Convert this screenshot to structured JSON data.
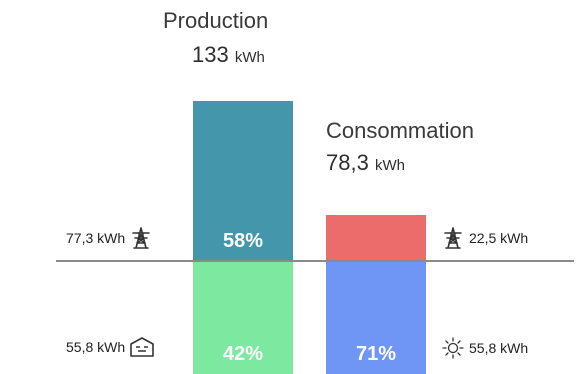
{
  "chart_data": {
    "type": "bar",
    "production": {
      "title": "Production",
      "total_value": "133",
      "unit": "kWh",
      "segments": [
        {
          "name": "grid",
          "percent": 58,
          "label": "58%",
          "value_label": "77,3 kWh",
          "icon": "power-pylon-icon",
          "color": "#4497ab"
        },
        {
          "name": "home",
          "percent": 42,
          "label": "42%",
          "value_label": "55,8 kWh",
          "icon": "house-icon",
          "color": "#7de89f"
        }
      ]
    },
    "consommation": {
      "title": "Consommation",
      "total_value": "78,3",
      "unit": "kWh",
      "segments": [
        {
          "name": "grid",
          "percent": 29,
          "label": "",
          "value_label": "22,5 kWh",
          "icon": "power-pylon-icon",
          "color": "#ec6b6b"
        },
        {
          "name": "solar",
          "percent": 71,
          "label": "71%",
          "value_label": "55,8 kWh",
          "icon": "sun-icon",
          "color": "#6f96f5"
        }
      ]
    }
  }
}
